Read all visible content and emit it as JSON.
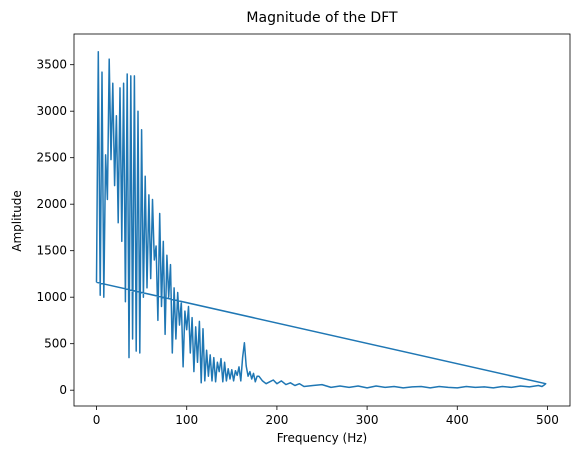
{
  "chart_data": {
    "type": "line",
    "title": "Magnitude of the DFT",
    "xlabel": "Frequency (Hz)",
    "ylabel": "Amplitude",
    "xlim": [
      -25,
      525
    ],
    "ylim": [
      -170,
      3830
    ],
    "xticks": [
      0,
      100,
      200,
      300,
      400,
      500
    ],
    "yticks": [
      0,
      500,
      1000,
      1500,
      2000,
      2500,
      3000,
      3500
    ],
    "grid": false,
    "legend": "none",
    "line_color": "#1f77b4",
    "series": [
      {
        "x": [
          0,
          2,
          4,
          6,
          8,
          10,
          12,
          14,
          16,
          18,
          20,
          22,
          24,
          26,
          28,
          30,
          32,
          34,
          36,
          38,
          40,
          42,
          44,
          46,
          48,
          50,
          52,
          54,
          56,
          58,
          60,
          62,
          64,
          66,
          68,
          70,
          72,
          74,
          76,
          78,
          80,
          82,
          84,
          86,
          88,
          90,
          92,
          94,
          96,
          98,
          100,
          102,
          104,
          106,
          108,
          110,
          112,
          114,
          116,
          118,
          120,
          122,
          124,
          126,
          128,
          130,
          132,
          134,
          136,
          138,
          140,
          142,
          144,
          146,
          148,
          150,
          152,
          154,
          156,
          158,
          160,
          162,
          164,
          166,
          168,
          170,
          172,
          174,
          176,
          178,
          180,
          184,
          188,
          192,
          196,
          200,
          205,
          210,
          215,
          220,
          225,
          230,
          240,
          250,
          260,
          270,
          280,
          290,
          300,
          310,
          320,
          330,
          340,
          350,
          360,
          370,
          380,
          390,
          400,
          410,
          420,
          430,
          440,
          450,
          460,
          470,
          480,
          490,
          494,
          497,
          498,
          0
        ],
        "y": [
          1160,
          3640,
          1020,
          3420,
          1000,
          2530,
          2050,
          3560,
          2480,
          3300,
          2200,
          2950,
          1800,
          3250,
          1600,
          3300,
          950,
          3400,
          350,
          3380,
          550,
          3380,
          420,
          3000,
          400,
          2800,
          1000,
          2300,
          1100,
          2100,
          1200,
          2050,
          1400,
          1550,
          750,
          1900,
          900,
          1600,
          600,
          1450,
          1000,
          1350,
          400,
          1100,
          550,
          1050,
          700,
          950,
          250,
          850,
          650,
          900,
          400,
          780,
          200,
          680,
          300,
          740,
          80,
          660,
          100,
          430,
          150,
          380,
          100,
          350,
          90,
          300,
          200,
          340,
          90,
          300,
          100,
          230,
          120,
          220,
          100,
          210,
          160,
          250,
          100,
          350,
          510,
          260,
          150,
          200,
          120,
          180,
          90,
          150,
          150,
          100,
          70,
          90,
          110,
          70,
          100,
          60,
          80,
          50,
          70,
          40,
          50,
          60,
          30,
          45,
          30,
          45,
          25,
          45,
          30,
          40,
          25,
          35,
          40,
          25,
          40,
          30,
          25,
          40,
          30,
          35,
          25,
          40,
          30,
          45,
          35,
          50,
          40,
          60,
          70,
          1160
        ]
      }
    ]
  }
}
